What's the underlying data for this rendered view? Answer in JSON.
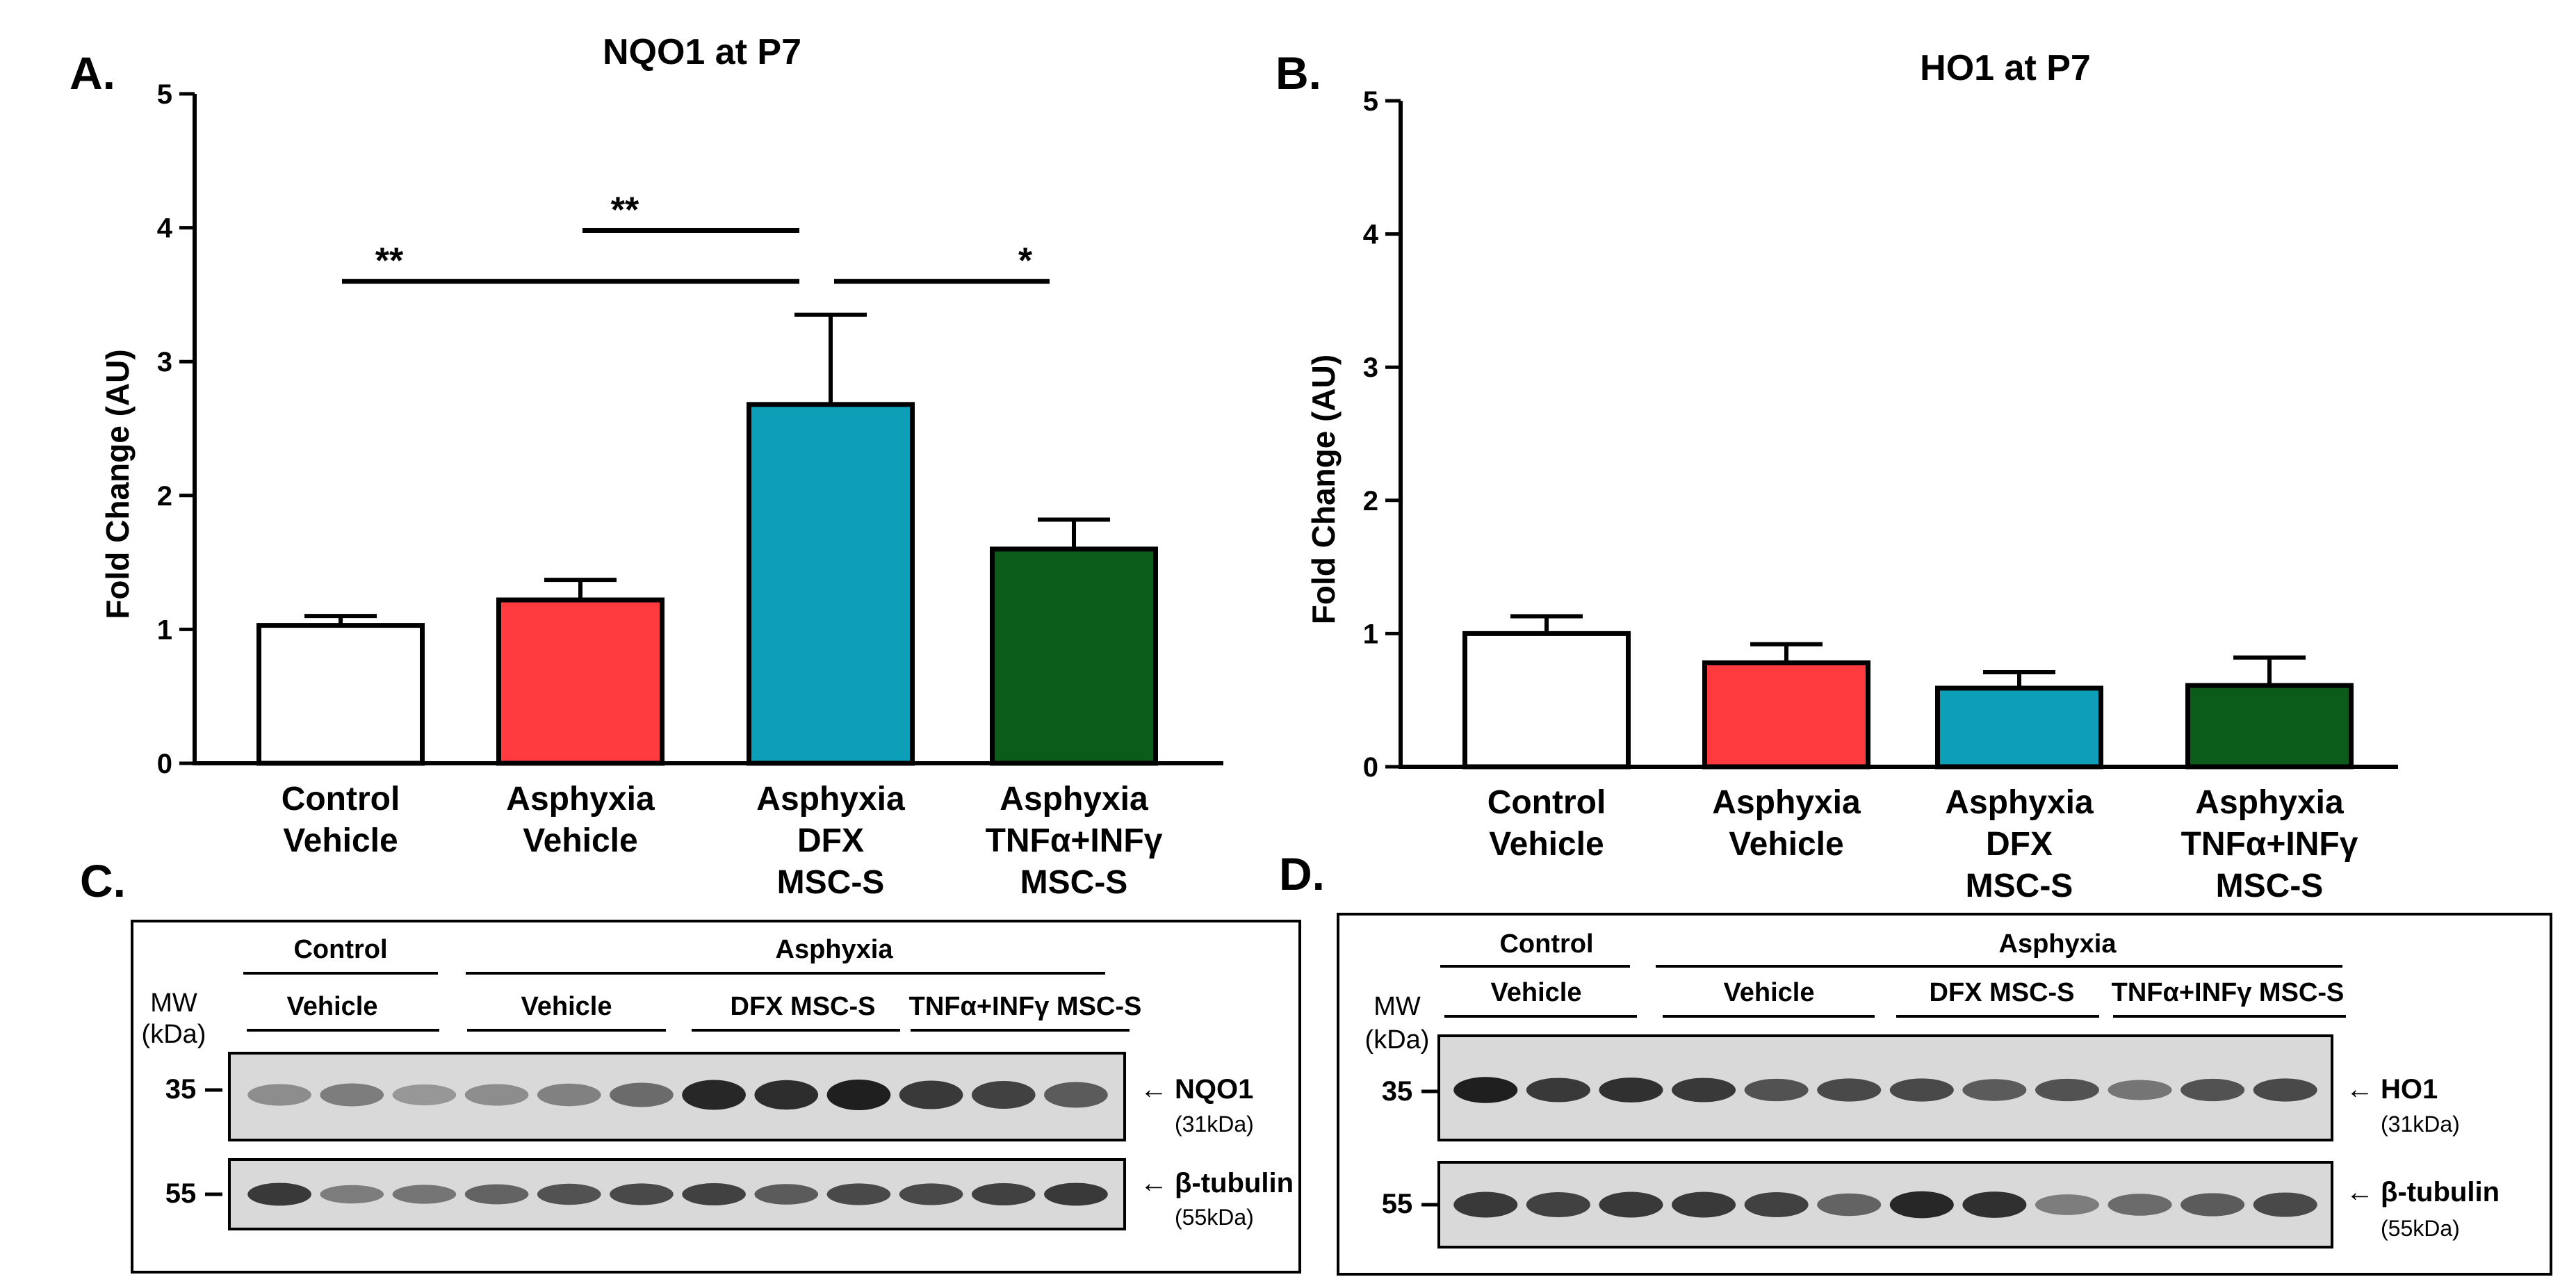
{
  "chart_data": [
    {
      "panel": "A.",
      "type": "bar",
      "title": "NQO1 at P7",
      "ylabel": "Fold Change (AU)",
      "ylim": [
        0,
        5
      ],
      "yticks": [
        "0",
        "1",
        "2",
        "3",
        "4",
        "5"
      ],
      "categories": [
        [
          "Control",
          "Vehicle"
        ],
        [
          "Asphyxia",
          "Vehicle"
        ],
        [
          "Asphyxia",
          "DFX",
          "MSC-S"
        ],
        [
          "Asphyxia",
          "TNFα+INFγ",
          "MSC-S"
        ]
      ],
      "values": [
        1.03,
        1.22,
        2.68,
        1.6
      ],
      "errors": [
        0.07,
        0.15,
        0.67,
        0.22
      ],
      "colors": [
        "#ffffff",
        "#ff3b3f",
        "#0e9fb8",
        "#0b5c1a"
      ],
      "significance": [
        {
          "from": 0,
          "to": 2,
          "label": "**",
          "level": 3.6
        },
        {
          "from": 1,
          "to": 2,
          "label": "**",
          "level": 3.98
        },
        {
          "from": 2,
          "to": 3,
          "label": "*",
          "level": 3.6
        }
      ]
    },
    {
      "panel": "B.",
      "type": "bar",
      "title": "HO1 at P7",
      "ylabel": "Fold Change (AU)",
      "ylim": [
        0,
        5
      ],
      "yticks": [
        "0",
        "1",
        "2",
        "3",
        "4",
        "5"
      ],
      "categories": [
        [
          "Control",
          "Vehicle"
        ],
        [
          "Asphyxia",
          "Vehicle"
        ],
        [
          "Asphyxia",
          "DFX",
          "MSC-S"
        ],
        [
          "Asphyxia",
          "TNFα+INFγ",
          "MSC-S"
        ]
      ],
      "values": [
        1.0,
        0.78,
        0.59,
        0.61
      ],
      "errors": [
        0.13,
        0.14,
        0.12,
        0.21
      ],
      "colors": [
        "#ffffff",
        "#ff3b3f",
        "#0e9fb8",
        "#0b5c1a"
      ],
      "significance": []
    }
  ],
  "blots": [
    {
      "panel": "C.",
      "control_label": "Control",
      "asphyxia_label": "Asphyxia",
      "group_labels": [
        "Vehicle",
        "Vehicle",
        "DFX MSC-S",
        "TNFα+INFγ MSC-S"
      ],
      "mw_label": "MW",
      "kda_label": "(kDa)",
      "rows": [
        {
          "mw": "35",
          "protein": "NQO1",
          "size": "(31kDa)",
          "intensity": [
            0.35,
            0.45,
            0.3,
            0.35,
            0.42,
            0.55,
            0.95,
            0.92,
            1.0,
            0.85,
            0.8,
            0.65
          ]
        },
        {
          "mw": "55",
          "protein": "β-tubulin",
          "size": "(55kDa)",
          "intensity": [
            0.85,
            0.45,
            0.5,
            0.6,
            0.7,
            0.75,
            0.8,
            0.65,
            0.75,
            0.75,
            0.8,
            0.85
          ]
        }
      ]
    },
    {
      "panel": "D.",
      "control_label": "Control",
      "asphyxia_label": "Asphyxia",
      "group_labels": [
        "Vehicle",
        "Vehicle",
        "DFX MSC-S",
        "TNFα+INFγ MSC-S"
      ],
      "mw_label": "MW",
      "kda_label": "(kDa)",
      "rows": [
        {
          "mw": "35",
          "protein": "HO1",
          "size": "(31kDa)",
          "intensity": [
            1.0,
            0.85,
            0.9,
            0.85,
            0.7,
            0.75,
            0.75,
            0.65,
            0.7,
            0.5,
            0.7,
            0.75
          ]
        },
        {
          "mw": "55",
          "protein": "β-tubulin",
          "size": "(55kDa)",
          "intensity": [
            0.85,
            0.8,
            0.85,
            0.85,
            0.8,
            0.6,
            0.95,
            0.9,
            0.45,
            0.55,
            0.65,
            0.75
          ]
        }
      ]
    }
  ]
}
